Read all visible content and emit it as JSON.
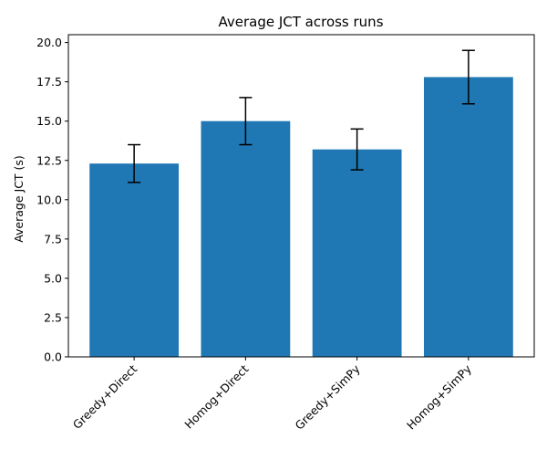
{
  "chart_data": {
    "type": "bar",
    "title": "Average JCT across runs",
    "xlabel": "",
    "ylabel": "Average JCT (s)",
    "categories": [
      "Greedy+Direct",
      "Homog+Direct",
      "Greedy+SimPy",
      "Homog+SimPy"
    ],
    "values": [
      12.3,
      15.0,
      13.2,
      17.8
    ],
    "error": [
      1.2,
      1.5,
      1.3,
      1.7
    ],
    "ylim": [
      0,
      20.5
    ],
    "yticks": [
      0.0,
      2.5,
      5.0,
      7.5,
      10.0,
      12.5,
      15.0,
      17.5,
      20.0
    ],
    "ytick_labels": [
      "0.0",
      "2.5",
      "5.0",
      "7.5",
      "10.0",
      "12.5",
      "15.0",
      "17.5",
      "20.0"
    ],
    "grid": false,
    "bar_color": "#1f77b4",
    "error_color": "#000000"
  }
}
